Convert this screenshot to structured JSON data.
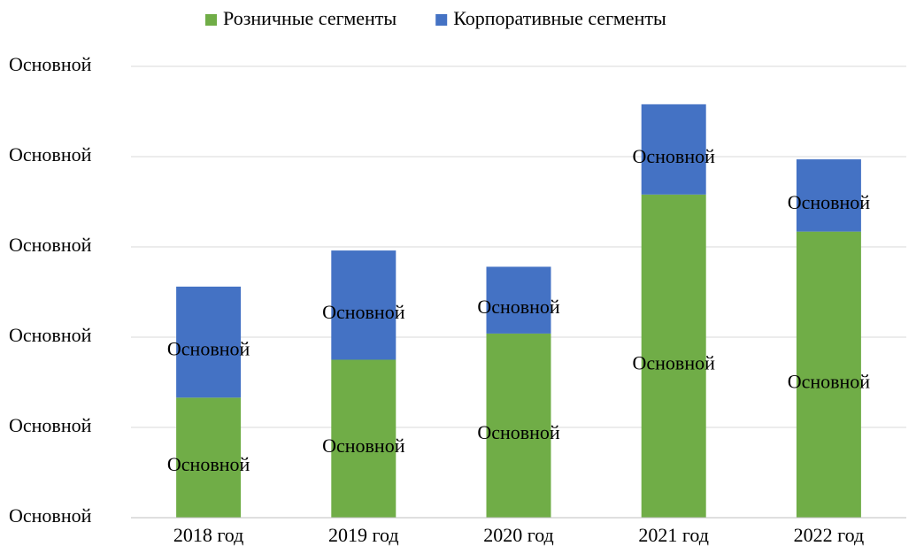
{
  "chart_data": {
    "type": "stacked_bar",
    "categories": [
      "2018 год",
      "2019 год",
      "2020 год",
      "2021 год",
      "2022 год"
    ],
    "series": [
      {
        "name": "Розничные сегменты",
        "color": "#70ad47",
        "values": [
          1.33,
          1.75,
          2.04,
          3.58,
          3.17
        ],
        "value_labels": [
          "Основной",
          "Основной",
          "Основной",
          "Основной",
          "Основной"
        ]
      },
      {
        "name": "Корпоративные сегменты",
        "color": "#4472c4",
        "values": [
          1.23,
          1.21,
          0.74,
          1.0,
          0.8
        ],
        "value_labels": [
          "Основной",
          "Основной",
          "Основной",
          "Основной",
          "Основной"
        ]
      }
    ],
    "ylim": [
      0,
      5
    ],
    "yticks": [
      {
        "value": 0,
        "label": "Основной"
      },
      {
        "value": 1,
        "label": "Основной"
      },
      {
        "value": 2,
        "label": "Основной"
      },
      {
        "value": 3,
        "label": "Основной"
      },
      {
        "value": 4,
        "label": "Основной"
      },
      {
        "value": 5,
        "label": "Основной"
      }
    ],
    "grid": true,
    "legend": "top"
  }
}
